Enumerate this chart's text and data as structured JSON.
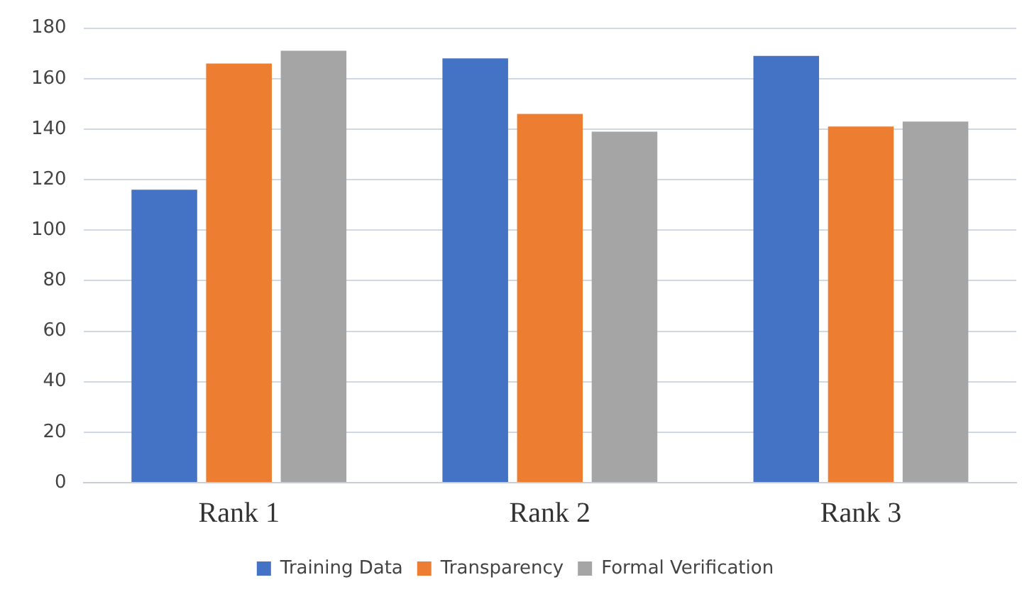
{
  "chart_data": {
    "type": "bar",
    "categories": [
      "Rank 1",
      "Rank 2",
      "Rank 3"
    ],
    "series": [
      {
        "name": "Training Data",
        "color": "#4472c4",
        "values": [
          116,
          168,
          169
        ]
      },
      {
        "name": "Transparency",
        "color": "#ed7d31",
        "values": [
          166,
          146,
          141
        ]
      },
      {
        "name": "Formal Verification",
        "color": "#a5a5a5",
        "values": [
          171,
          139,
          143
        ]
      }
    ],
    "ylim": [
      0,
      180
    ],
    "yticks": [
      0,
      20,
      40,
      60,
      80,
      100,
      120,
      140,
      160,
      180
    ],
    "grid": "y",
    "legend": "bottom"
  }
}
